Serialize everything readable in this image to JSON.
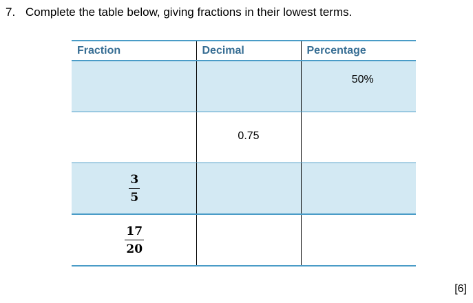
{
  "question": {
    "number": "7.",
    "text": "Complete the table below, giving fractions in their lowest terms."
  },
  "table": {
    "headers": [
      "Fraction",
      "Decimal",
      "Percentage"
    ],
    "rows": [
      {
        "fraction": null,
        "decimal": "",
        "percentage": "50%"
      },
      {
        "fraction": null,
        "decimal": "0.75",
        "percentage": ""
      },
      {
        "fraction": {
          "numerator": "3",
          "denominator": "5"
        },
        "decimal": "",
        "percentage": ""
      },
      {
        "fraction": {
          "numerator": "17",
          "denominator": "20"
        },
        "decimal": "",
        "percentage": ""
      }
    ]
  },
  "marks": "[6]",
  "colors": {
    "header_text": "#366d93",
    "rule": "#4a9cc7",
    "shading": "#d3e9f3"
  }
}
